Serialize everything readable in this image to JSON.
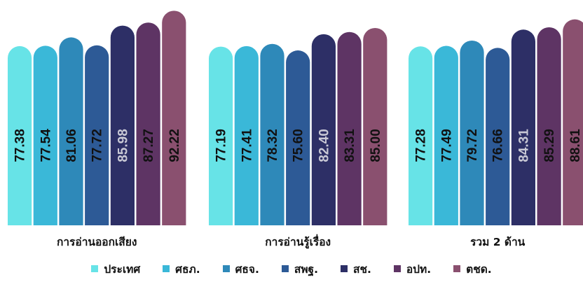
{
  "chart_data": {
    "type": "bar",
    "title": "",
    "xlabel": "",
    "ylabel": "",
    "categories": [
      "การอ่านออกเสียง",
      "การอ่านรู้เรื่อง",
      "รวม 2 ด้าน"
    ],
    "series": [
      {
        "name": "ประเทศ",
        "values": [
          77.38,
          77.19,
          77.28
        ],
        "color": "#67e3e7",
        "text_color": "#111111"
      },
      {
        "name": "ศธภ.",
        "values": [
          77.54,
          77.41,
          77.49
        ],
        "color": "#3ab8d8",
        "text_color": "#111111"
      },
      {
        "name": "ศธจ.",
        "values": [
          81.06,
          78.32,
          79.72
        ],
        "color": "#2e89b9",
        "text_color": "#111111"
      },
      {
        "name": "สพฐ.",
        "values": [
          77.72,
          75.6,
          76.66
        ],
        "color": "#2d5a96",
        "text_color": "#111111"
      },
      {
        "name": "สช.",
        "values": [
          85.98,
          82.4,
          84.31
        ],
        "color": "#2d2f66",
        "text_color": "#c9c9d6"
      },
      {
        "name": "อปท.",
        "values": [
          87.27,
          83.31,
          85.29
        ],
        "color": "#5e3464",
        "text_color": "#111111"
      },
      {
        "name": "ตชด.",
        "values": [
          92.22,
          85.0,
          88.61
        ],
        "color": "#8a506f",
        "text_color": "#111111"
      }
    ],
    "legend_position": "bottom",
    "grid": false
  }
}
